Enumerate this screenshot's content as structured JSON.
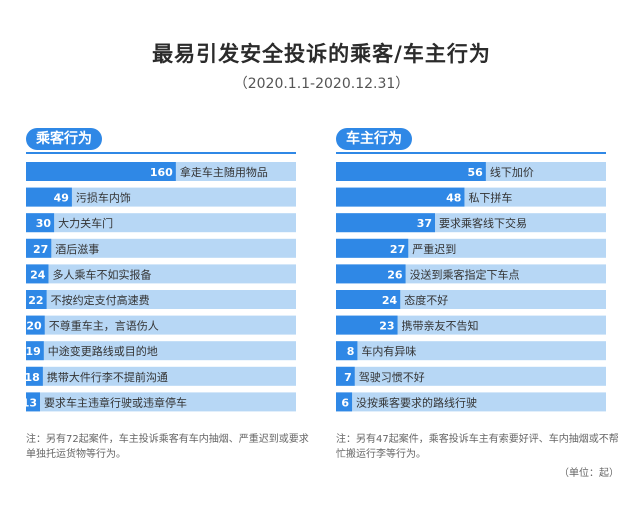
{
  "title": "最易引发安全投诉的乘客/车主行为",
  "subtitle": "（2020.1.1-2020.12.31）",
  "unit": "（单位：起）",
  "colors": {
    "bar": "#2f88e6",
    "track": "#b7d7f5",
    "label_text_on_bar": "#ffffff",
    "label_text": "#333333"
  },
  "chart_data": [
    {
      "type": "bar",
      "orientation": "horizontal",
      "title": "乘客行为",
      "xlim": [
        0,
        160
      ],
      "categories": [
        "拿走车主随用物品",
        "污损车内饰",
        "大力关车门",
        "酒后滋事",
        "多人乘车不如实报备",
        "不按约定支付高速费",
        "不尊重车主，言语伤人",
        "中途变更路线或目的地",
        "携带大件行李不提前沟通",
        "要求车主违章行驶或违章停车"
      ],
      "values": [
        160,
        49,
        30,
        27,
        24,
        22,
        20,
        19,
        18,
        13
      ],
      "note": "注：另有72起案件，车主投诉乘客有车内抽烟、严重迟到或要求单独托运货物等行为。"
    },
    {
      "type": "bar",
      "orientation": "horizontal",
      "title": "车主行为",
      "xlim": [
        0,
        56
      ],
      "categories": [
        "线下加价",
        "私下拼车",
        "要求乘客线下交易",
        "严重迟到",
        "没送到乘客指定下车点",
        "态度不好",
        "携带亲友不告知",
        "车内有异味",
        "驾驶习惯不好",
        "没按乘客要求的路线行驶"
      ],
      "values": [
        56,
        48,
        37,
        27,
        26,
        24,
        23,
        8,
        7,
        6
      ],
      "note": "注：另有47起案件，乘客投诉车主有索要好评、车内抽烟或不帮忙搬运行李等行为。"
    }
  ]
}
